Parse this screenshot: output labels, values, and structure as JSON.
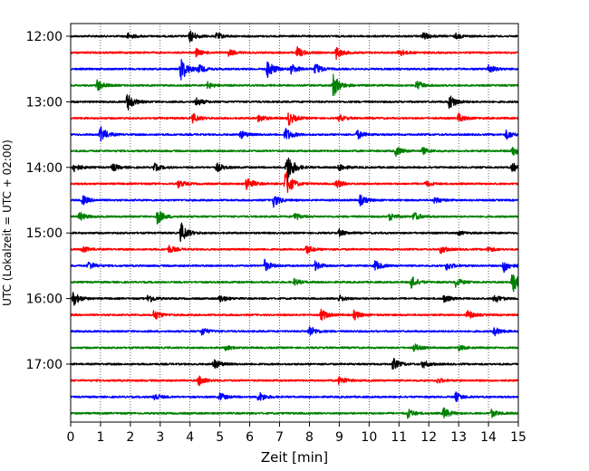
{
  "chart_data": {
    "type": "line",
    "title": "",
    "xlabel": "Zeit  [min]",
    "ylabel": "UTC (Lokalzeit = UTC + 02:00)",
    "xlim": [
      0,
      15
    ],
    "x_ticks": [
      "0",
      "1",
      "2",
      "3",
      "4",
      "5",
      "6",
      "7",
      "8",
      "9",
      "10",
      "11",
      "12",
      "13",
      "14",
      "15"
    ],
    "y_tick_labels": [
      {
        "row": 0,
        "label": "12:00"
      },
      {
        "row": 4,
        "label": "13:00"
      },
      {
        "row": 8,
        "label": "14:00"
      },
      {
        "row": 12,
        "label": "15:00"
      },
      {
        "row": 16,
        "label": "16:00"
      },
      {
        "row": 20,
        "label": "17:00"
      }
    ],
    "grid": {
      "x": true,
      "style": "dotted"
    },
    "color_cycle": [
      "#000000",
      "#ff0000",
      "#0000ff",
      "#008000"
    ],
    "traces": [
      {
        "start": "12:00",
        "events": [
          [
            1.9,
            0.25
          ],
          [
            4.0,
            0.45
          ],
          [
            4.9,
            0.25
          ],
          [
            11.8,
            0.3
          ],
          [
            12.9,
            0.2
          ]
        ]
      },
      {
        "start": "12:15",
        "events": [
          [
            4.2,
            0.3
          ],
          [
            5.3,
            0.25
          ],
          [
            7.6,
            0.4
          ],
          [
            8.9,
            0.45
          ],
          [
            11.0,
            0.3
          ]
        ]
      },
      {
        "start": "12:30",
        "events": [
          [
            3.7,
            1.0
          ],
          [
            4.3,
            0.3
          ],
          [
            6.6,
            0.75
          ],
          [
            7.4,
            0.4
          ],
          [
            8.2,
            0.45
          ],
          [
            14.0,
            0.35
          ]
        ]
      },
      {
        "start": "12:45",
        "events": [
          [
            0.9,
            0.45
          ],
          [
            4.6,
            0.25
          ],
          [
            8.8,
            0.9
          ],
          [
            11.6,
            0.35
          ]
        ]
      },
      {
        "start": "13:00",
        "events": [
          [
            1.9,
            0.7
          ],
          [
            4.2,
            0.35
          ],
          [
            12.7,
            0.6
          ]
        ]
      },
      {
        "start": "13:15",
        "events": [
          [
            4.1,
            0.35
          ],
          [
            6.3,
            0.3
          ],
          [
            7.3,
            0.55
          ],
          [
            9.0,
            0.25
          ],
          [
            13.0,
            0.35
          ]
        ]
      },
      {
        "start": "13:30",
        "events": [
          [
            1.0,
            0.65
          ],
          [
            5.7,
            0.3
          ],
          [
            7.2,
            0.55
          ],
          [
            9.6,
            0.35
          ],
          [
            14.6,
            0.35
          ]
        ]
      },
      {
        "start": "13:45",
        "events": [
          [
            10.9,
            0.35
          ],
          [
            11.8,
            0.25
          ],
          [
            14.8,
            0.4
          ]
        ]
      },
      {
        "start": "14:00",
        "events": [
          [
            0.1,
            0.35
          ],
          [
            1.4,
            0.3
          ],
          [
            2.8,
            0.3
          ],
          [
            4.9,
            0.35
          ],
          [
            7.25,
            1.3
          ],
          [
            9.0,
            0.3
          ],
          [
            14.8,
            0.35
          ]
        ]
      },
      {
        "start": "14:15",
        "events": [
          [
            3.6,
            0.3
          ],
          [
            5.9,
            0.55
          ],
          [
            7.2,
            1.1
          ],
          [
            8.9,
            0.35
          ],
          [
            11.9,
            0.2
          ]
        ]
      },
      {
        "start": "14:30",
        "events": [
          [
            0.4,
            0.35
          ],
          [
            6.8,
            0.5
          ],
          [
            9.7,
            0.4
          ],
          [
            12.2,
            0.25
          ]
        ]
      },
      {
        "start": "14:45",
        "events": [
          [
            0.3,
            0.35
          ],
          [
            2.9,
            0.6
          ],
          [
            7.5,
            0.3
          ],
          [
            10.7,
            0.3
          ],
          [
            11.5,
            0.35
          ]
        ]
      },
      {
        "start": "15:00",
        "events": [
          [
            3.7,
            0.8
          ],
          [
            9.0,
            0.25
          ],
          [
            13.0,
            0.15
          ]
        ]
      },
      {
        "start": "15:15",
        "events": [
          [
            0.4,
            0.25
          ],
          [
            3.3,
            0.3
          ],
          [
            7.9,
            0.35
          ],
          [
            12.4,
            0.3
          ],
          [
            14.0,
            0.2
          ]
        ]
      },
      {
        "start": "15:30",
        "events": [
          [
            0.6,
            0.35
          ],
          [
            6.5,
            0.45
          ],
          [
            8.2,
            0.35
          ],
          [
            10.2,
            0.4
          ],
          [
            12.6,
            0.35
          ],
          [
            14.5,
            0.55
          ]
        ]
      },
      {
        "start": "15:45",
        "events": [
          [
            7.5,
            0.25
          ],
          [
            11.4,
            0.5
          ],
          [
            12.9,
            0.35
          ],
          [
            14.8,
            0.85
          ]
        ]
      },
      {
        "start": "16:00",
        "events": [
          [
            0.1,
            0.55
          ],
          [
            2.6,
            0.35
          ],
          [
            5.0,
            0.3
          ],
          [
            9.0,
            0.25
          ],
          [
            12.5,
            0.3
          ],
          [
            14.2,
            0.35
          ]
        ]
      },
      {
        "start": "16:15",
        "events": [
          [
            2.8,
            0.4
          ],
          [
            8.4,
            0.45
          ],
          [
            9.5,
            0.35
          ],
          [
            13.3,
            0.35
          ]
        ]
      },
      {
        "start": "16:30",
        "events": [
          [
            4.4,
            0.3
          ],
          [
            8.0,
            0.45
          ],
          [
            14.2,
            0.35
          ]
        ]
      },
      {
        "start": "16:45",
        "events": [
          [
            5.2,
            0.2
          ],
          [
            11.5,
            0.3
          ],
          [
            13.0,
            0.2
          ]
        ]
      },
      {
        "start": "17:00",
        "events": [
          [
            4.8,
            0.4
          ],
          [
            10.8,
            0.45
          ],
          [
            11.8,
            0.3
          ]
        ]
      },
      {
        "start": "17:15",
        "events": [
          [
            4.3,
            0.4
          ],
          [
            9.0,
            0.35
          ],
          [
            12.3,
            0.2
          ]
        ]
      },
      {
        "start": "17:30",
        "events": [
          [
            2.8,
            0.3
          ],
          [
            5.0,
            0.3
          ],
          [
            6.3,
            0.4
          ],
          [
            12.9,
            0.35
          ]
        ]
      },
      {
        "start": "17:45",
        "events": [
          [
            11.3,
            0.35
          ],
          [
            12.5,
            0.45
          ],
          [
            14.1,
            0.3
          ]
        ]
      }
    ]
  }
}
